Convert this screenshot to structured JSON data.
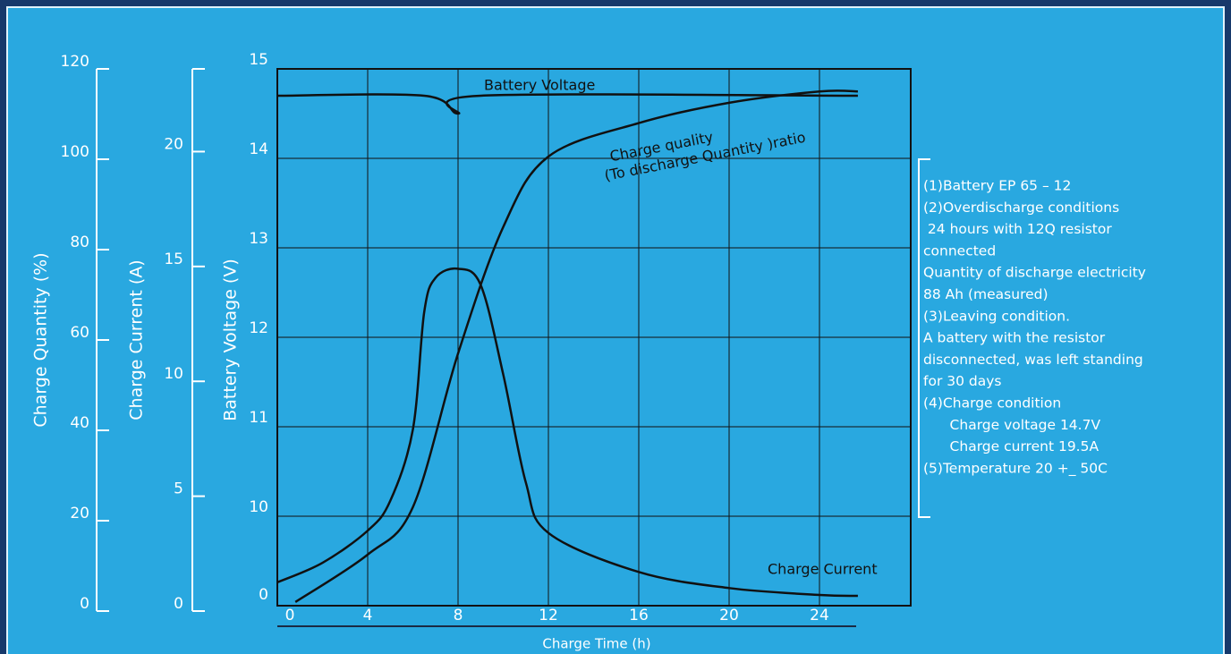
{
  "chart_data": {
    "type": "line",
    "xlabel": "Charge Time (h)",
    "ylabel": "Battery Voltage (V)",
    "y2label": "Charge Current (A)",
    "y3label": "Charge Quantity (%)",
    "xlim": [
      0,
      28
    ],
    "xticks": [
      0,
      4,
      8,
      12,
      16,
      20,
      24
    ],
    "ylim": [
      9,
      15
    ],
    "yticks": [
      10,
      11,
      12,
      13,
      14,
      15
    ],
    "ybreak_label": "0",
    "y2lim": [
      0,
      23.6
    ],
    "y2ticks": [
      0,
      5,
      10,
      15,
      20
    ],
    "y3lim": [
      0,
      120
    ],
    "y3ticks": [
      0,
      20,
      40,
      60,
      80,
      100,
      120
    ],
    "grid": true,
    "series": [
      {
        "name": "Battery Voltage",
        "color": "#111111",
        "axis": "y",
        "x": [
          0,
          6.5,
          8,
          9,
          25.7
        ],
        "values": [
          14.7,
          14.7,
          14.5,
          14.7,
          14.7
        ]
      },
      {
        "name": "Charge quality",
        "color": "#111111",
        "axis": "y3",
        "x": [
          0.8,
          4,
          6,
          8,
          10,
          12,
          16,
          20,
          24,
          25.7
        ],
        "values": [
          2,
          12.5,
          23,
          57,
          85,
          100.6,
          108,
          112.5,
          115,
          115
        ]
      },
      {
        "name": "Charge Current",
        "color": "#111111",
        "axis": "y2",
        "x": [
          0,
          2,
          4,
          5,
          6,
          6.5,
          7,
          8,
          9,
          10,
          11,
          12,
          16,
          20,
          24,
          25.7
        ],
        "values": [
          1.25,
          2.1,
          3.5,
          4.8,
          7.9,
          13,
          14.5,
          14.9,
          14.2,
          10.3,
          5.6,
          3.4,
          1.7,
          1.0,
          0.7,
          0.66
        ]
      }
    ],
    "annotations": {
      "quality_line1": "Charge quality",
      "quality_line2": "(To discharge Quantity )ratio"
    },
    "notes": [
      "(1)Battery EP 65 – 12",
      "(2)Overdischarge conditions",
      " 24 hours with 12Q resistor",
      "connected",
      "Quantity of discharge electricity",
      "88 Ah (measured)",
      "(3)Leaving condition.",
      "A battery with the resistor",
      "disconnected, was left standing",
      "for 30 days",
      "(4)Charge condition",
      "      Charge voltage 14.7V",
      "      Charge current 19.5A",
      "(5)Temperature 20 +_ 50C"
    ]
  }
}
